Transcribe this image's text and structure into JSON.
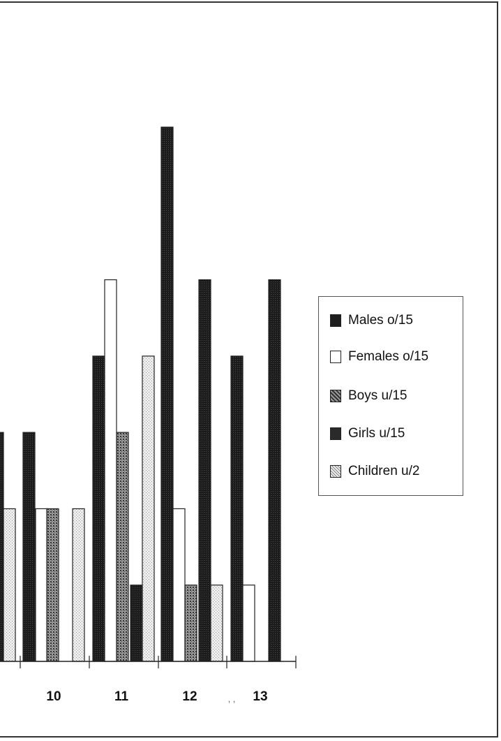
{
  "chart_data": {
    "type": "bar",
    "categories": [
      "10",
      "11",
      "12",
      "13"
    ],
    "ylim": [
      0,
      7
    ],
    "grid": false,
    "legend_position": "right",
    "series": [
      {
        "name": "Males o/15",
        "color": "#1e1e1e",
        "pattern": "solid-dark",
        "values": [
          null,
          4,
          7,
          4
        ]
      },
      {
        "name": "Females o/15",
        "color": "#ffffff",
        "pattern": "hollow",
        "values": [
          2,
          5,
          2,
          1
        ]
      },
      {
        "name": "Boys u/15",
        "color": "#6a6a6a",
        "pattern": "speckled",
        "values": [
          2,
          3,
          1,
          null
        ]
      },
      {
        "name": "Girls u/15",
        "color": "#2a2a2a",
        "pattern": "solid-dark",
        "values": [
          null,
          1,
          5,
          5
        ]
      },
      {
        "name": "Children u/2",
        "color": "#d8d8d8",
        "pattern": "light-dotted",
        "values": [
          2,
          4,
          1,
          null
        ]
      }
    ],
    "partial_left_bars": [
      {
        "series": "Girls u/15",
        "value": 3
      },
      {
        "series": "Children u/2",
        "value": 2
      },
      {
        "series": "Males o/15",
        "value": 3
      }
    ],
    "tick_labels": [
      "10",
      "11",
      "12",
      "13"
    ],
    "annotations": [
      ", ,"
    ]
  }
}
